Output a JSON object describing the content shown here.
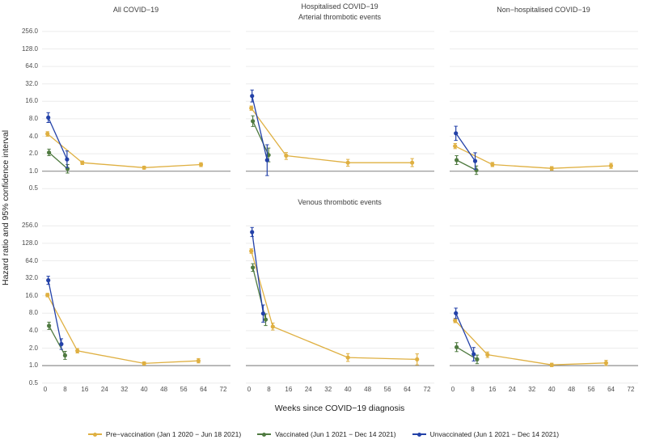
{
  "figure": {
    "y_axis_label": "Hazard ratio and 95% confidence interval",
    "x_axis_label": "Weeks since COVID−19 diagnosis",
    "y_tick_labels": [
      "256.0",
      "128.0",
      "64.0",
      "32.0",
      "16.0",
      "8.0",
      "4.0",
      "2.0",
      "1.0",
      "0.5"
    ],
    "x_tick_labels": [
      "0",
      "8",
      "16",
      "24",
      "32",
      "40",
      "48",
      "56",
      "64",
      "72"
    ],
    "background_color": "#ffffff",
    "gridline_color": "#ececec",
    "baseline_color": "#8f8f8f",
    "tick_text_color": "#4d4d4d"
  },
  "legend": {
    "items": [
      {
        "name": "pre-vaccination",
        "label": "Pre−vaccination (Jan 1 2020 − Jun 18 2021)",
        "color": "#dfb042"
      },
      {
        "name": "vaccinated",
        "label": "Vaccinated (Jun 1 2021 − Dec 14 2021)",
        "color": "#4f7a40"
      },
      {
        "name": "unvaccinated",
        "label": "Unvaccinated (Jun 1 2021 − Dec 14 2021)",
        "color": "#2341a8"
      }
    ]
  },
  "chart_data": [
    {
      "panel": "top-left",
      "type": "line",
      "cohort": "All COVID−19",
      "outcome": "Arterial thrombotic events",
      "x_range": [
        0,
        72
      ],
      "y_scale": "log2",
      "y_ticks": [
        256,
        128,
        64,
        32,
        16,
        8,
        4,
        2,
        1,
        0.5
      ],
      "series": [
        {
          "name": "Pre−vaccination",
          "points": [
            {
              "week": 0.9,
              "hr": 4.4,
              "lo": 4.0,
              "hi": 4.8
            },
            {
              "week": 15,
              "hr": 1.4,
              "lo": 1.3,
              "hi": 1.5
            },
            {
              "week": 40,
              "hr": 1.15,
              "lo": 1.08,
              "hi": 1.22
            },
            {
              "week": 63,
              "hr": 1.3,
              "lo": 1.2,
              "hi": 1.4
            }
          ]
        },
        {
          "name": "Vaccinated",
          "points": [
            {
              "week": 1.5,
              "hr": 2.1,
              "lo": 1.85,
              "hi": 2.4
            },
            {
              "week": 9,
              "hr": 1.1,
              "lo": 0.93,
              "hi": 1.3
            }
          ]
        },
        {
          "name": "Unvaccinated",
          "points": [
            {
              "week": 1.2,
              "hr": 8.4,
              "lo": 6.9,
              "hi": 10.2
            },
            {
              "week": 8.8,
              "hr": 1.6,
              "lo": 1.15,
              "hi": 2.23
            }
          ]
        }
      ]
    },
    {
      "panel": "top-middle",
      "type": "line",
      "cohort": "Hospitalised COVID−19",
      "outcome": "Arterial thrombotic events",
      "x_range": [
        0,
        72
      ],
      "y_scale": "log2",
      "y_ticks": [
        256,
        128,
        64,
        32,
        16,
        8,
        4,
        2,
        1,
        0.5
      ],
      "series": [
        {
          "name": "Pre−vaccination",
          "points": [
            {
              "week": 0.9,
              "hr": 12.2,
              "lo": 11.2,
              "hi": 13.3
            },
            {
              "week": 15,
              "hr": 1.85,
              "lo": 1.6,
              "hi": 2.1
            },
            {
              "week": 40,
              "hr": 1.4,
              "lo": 1.22,
              "hi": 1.6
            },
            {
              "week": 66,
              "hr": 1.4,
              "lo": 1.2,
              "hi": 1.65
            }
          ]
        },
        {
          "name": "Vaccinated",
          "points": [
            {
              "week": 1.5,
              "hr": 7.3,
              "lo": 5.9,
              "hi": 9.0
            },
            {
              "week": 7.9,
              "hr": 1.9,
              "lo": 1.45,
              "hi": 2.5
            }
          ]
        },
        {
          "name": "Unvaccinated",
          "points": [
            {
              "week": 1.2,
              "hr": 19.8,
              "lo": 15.6,
              "hi": 25.1
            },
            {
              "week": 7.3,
              "hr": 1.55,
              "lo": 0.84,
              "hi": 2.86
            }
          ]
        }
      ]
    },
    {
      "panel": "top-right",
      "type": "line",
      "cohort": "Non−hospitalised COVID−19",
      "outcome": "Arterial thrombotic events",
      "x_range": [
        0,
        72
      ],
      "y_scale": "log2",
      "y_ticks": [
        256,
        128,
        64,
        32,
        16,
        8,
        4,
        2,
        1,
        0.5
      ],
      "series": [
        {
          "name": "Pre−vaccination",
          "points": [
            {
              "week": 0.9,
              "hr": 2.7,
              "lo": 2.45,
              "hi": 3.0
            },
            {
              "week": 16,
              "hr": 1.3,
              "lo": 1.2,
              "hi": 1.42
            },
            {
              "week": 40,
              "hr": 1.12,
              "lo": 1.04,
              "hi": 1.2
            },
            {
              "week": 64,
              "hr": 1.24,
              "lo": 1.12,
              "hi": 1.37
            }
          ]
        },
        {
          "name": "Vaccinated",
          "points": [
            {
              "week": 1.5,
              "hr": 1.55,
              "lo": 1.3,
              "hi": 1.85
            },
            {
              "week": 9.5,
              "hr": 1.04,
              "lo": 0.88,
              "hi": 1.23
            }
          ]
        },
        {
          "name": "Unvaccinated",
          "points": [
            {
              "week": 1.2,
              "hr": 4.5,
              "lo": 3.4,
              "hi": 5.95
            },
            {
              "week": 9,
              "hr": 1.5,
              "lo": 1.08,
              "hi": 2.08
            }
          ]
        }
      ]
    },
    {
      "panel": "bottom-left",
      "type": "line",
      "cohort": "All COVID−19",
      "outcome": "Venous thrombotic events",
      "x_range": [
        0,
        72
      ],
      "y_scale": "log2",
      "y_ticks": [
        256,
        128,
        64,
        32,
        16,
        8,
        4,
        2,
        1,
        0.5
      ],
      "series": [
        {
          "name": "Pre−vaccination",
          "points": [
            {
              "week": 0.9,
              "hr": 16.4,
              "lo": 15.3,
              "hi": 17.6
            },
            {
              "week": 13,
              "hr": 1.8,
              "lo": 1.65,
              "hi": 1.97
            },
            {
              "week": 40,
              "hr": 1.09,
              "lo": 1.02,
              "hi": 1.16
            },
            {
              "week": 62,
              "hr": 1.21,
              "lo": 1.11,
              "hi": 1.32
            }
          ]
        },
        {
          "name": "Vaccinated",
          "points": [
            {
              "week": 1.5,
              "hr": 4.85,
              "lo": 4.2,
              "hi": 5.6
            },
            {
              "week": 8,
              "hr": 1.5,
              "lo": 1.28,
              "hi": 1.76
            }
          ]
        },
        {
          "name": "Unvaccinated",
          "points": [
            {
              "week": 1.2,
              "hr": 29.5,
              "lo": 25.1,
              "hi": 34.7
            },
            {
              "week": 6.5,
              "hr": 2.35,
              "lo": 1.9,
              "hi": 2.9
            }
          ]
        }
      ]
    },
    {
      "panel": "bottom-middle",
      "type": "line",
      "cohort": "Hospitalised COVID−19",
      "outcome": "Venous thrombotic events",
      "x_range": [
        0,
        72
      ],
      "y_scale": "log2",
      "y_ticks": [
        256,
        128,
        64,
        32,
        16,
        8,
        4,
        2,
        1,
        0.5
      ],
      "series": [
        {
          "name": "Pre−vaccination",
          "points": [
            {
              "week": 0.9,
              "hr": 94,
              "lo": 86,
              "hi": 103
            },
            {
              "week": 9.6,
              "hr": 4.7,
              "lo": 4.1,
              "hi": 5.4
            },
            {
              "week": 40,
              "hr": 1.38,
              "lo": 1.18,
              "hi": 1.61
            },
            {
              "week": 68,
              "hr": 1.28,
              "lo": 1.03,
              "hi": 1.59
            }
          ]
        },
        {
          "name": "Vaccinated",
          "points": [
            {
              "week": 1.5,
              "hr": 49,
              "lo": 42,
              "hi": 57
            },
            {
              "week": 6.7,
              "hr": 6.2,
              "lo": 4.9,
              "hi": 7.8
            }
          ]
        },
        {
          "name": "Unvaccinated",
          "points": [
            {
              "week": 1.2,
              "hr": 200,
              "lo": 167,
              "hi": 240
            },
            {
              "week": 5.7,
              "hr": 7.9,
              "lo": 5.6,
              "hi": 11.1
            }
          ]
        }
      ]
    },
    {
      "panel": "bottom-right",
      "type": "line",
      "cohort": "Non−hospitalised COVID−19",
      "outcome": "Venous thrombotic events",
      "x_range": [
        0,
        72
      ],
      "y_scale": "log2",
      "y_ticks": [
        256,
        128,
        64,
        32,
        16,
        8,
        4,
        2,
        1,
        0.5
      ],
      "series": [
        {
          "name": "Pre−vaccination",
          "points": [
            {
              "week": 0.9,
              "hr": 6.0,
              "lo": 5.5,
              "hi": 6.5
            },
            {
              "week": 14,
              "hr": 1.54,
              "lo": 1.38,
              "hi": 1.72
            },
            {
              "week": 40,
              "hr": 1.03,
              "lo": 0.96,
              "hi": 1.1
            },
            {
              "week": 62,
              "hr": 1.11,
              "lo": 1.0,
              "hi": 1.23
            }
          ]
        },
        {
          "name": "Vaccinated",
          "points": [
            {
              "week": 1.5,
              "hr": 2.08,
              "lo": 1.74,
              "hi": 2.49
            },
            {
              "week": 9.8,
              "hr": 1.28,
              "lo": 1.08,
              "hi": 1.52
            }
          ]
        },
        {
          "name": "Unvaccinated",
          "points": [
            {
              "week": 1.2,
              "hr": 8.0,
              "lo": 6.5,
              "hi": 9.8
            },
            {
              "week": 8.4,
              "hr": 1.57,
              "lo": 1.2,
              "hi": 2.05
            }
          ]
        }
      ]
    }
  ]
}
